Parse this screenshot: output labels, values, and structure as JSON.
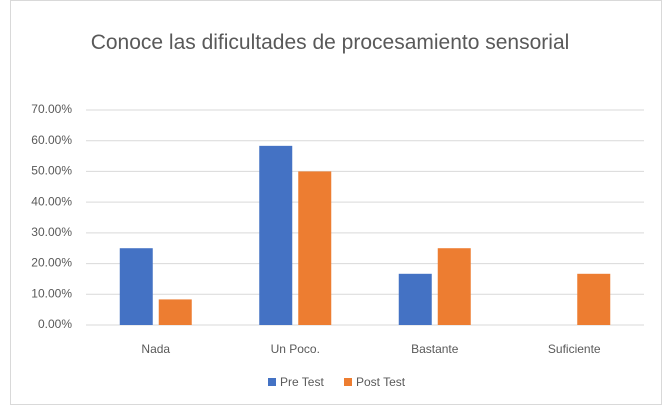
{
  "chart_data": {
    "type": "bar",
    "title": "Conoce las dificultades de procesamiento sensorial",
    "categories": [
      "Nada",
      "Un Poco.",
      "Bastante",
      "Suficiente"
    ],
    "series": [
      {
        "name": "Pre Test",
        "color": "#4472c4",
        "values": [
          25,
          58.33,
          16.67,
          0
        ]
      },
      {
        "name": "Post Test",
        "color": "#ed7d31",
        "values": [
          8.33,
          50,
          25,
          16.67
        ]
      }
    ],
    "ylim": [
      0,
      70
    ],
    "yticks": [
      {
        "value": 0,
        "label": "0.00%"
      },
      {
        "value": 10,
        "label": "10.00%"
      },
      {
        "value": 20,
        "label": "20.00%"
      },
      {
        "value": 30,
        "label": "30.00%"
      },
      {
        "value": 40,
        "label": "40.00%"
      },
      {
        "value": 50,
        "label": "50.00%"
      },
      {
        "value": 60,
        "label": "60.00%"
      },
      {
        "value": 70,
        "label": "70.00%"
      }
    ],
    "grid": true,
    "legend": "bottom"
  }
}
